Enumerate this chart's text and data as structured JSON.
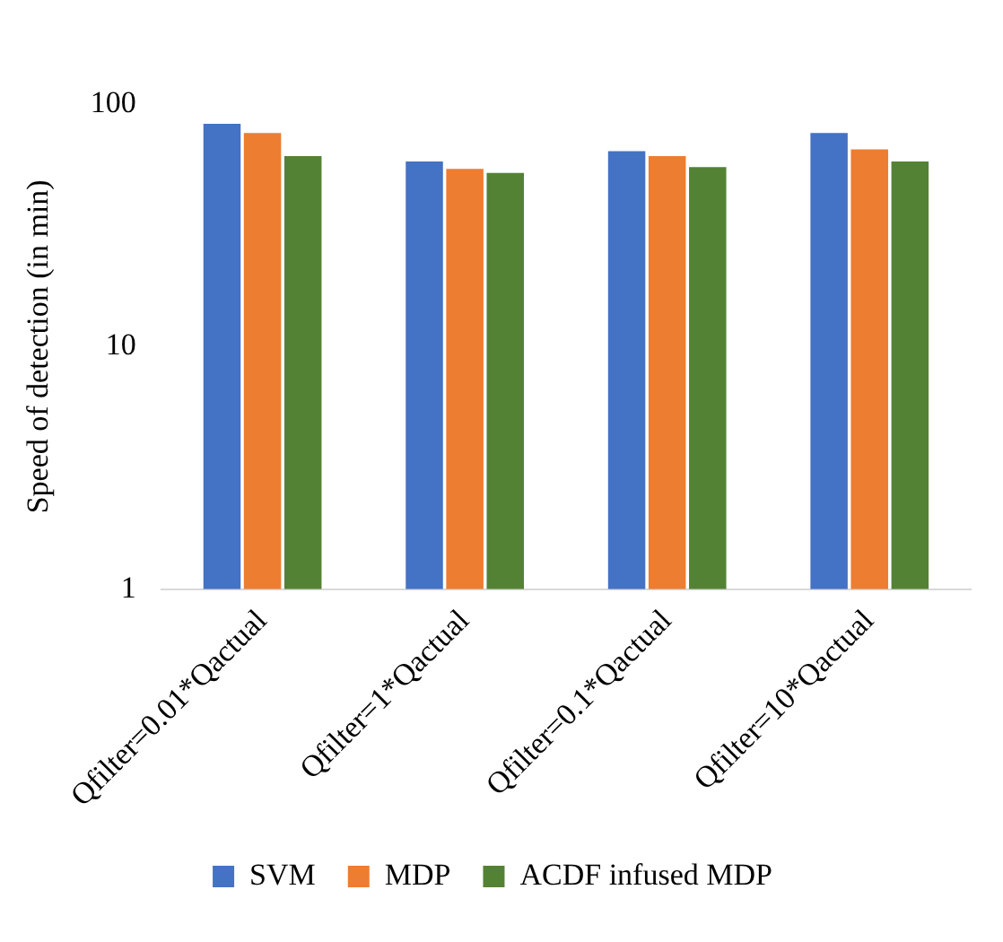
{
  "chart_data": {
    "type": "bar",
    "ylabel": "Speed of detection (in min)",
    "categories": [
      "Qfilter=0.01*Qactual",
      "Qfilter=1*Qactual",
      "Qfilter=0.1*Qactual",
      "Qfilter=10*Qactual"
    ],
    "series": [
      {
        "name": "SVM",
        "color": "#4472c4",
        "values": [
          83,
          58,
          64,
          76
        ]
      },
      {
        "name": "MDP",
        "color": "#ed7d31",
        "values": [
          76,
          54,
          61,
          65
        ]
      },
      {
        "name": "ACDF infused MDP",
        "color": "#548235",
        "values": [
          61,
          52,
          55,
          58
        ]
      }
    ],
    "ylim": [
      1,
      100
    ],
    "yticks": [
      1,
      10,
      100
    ],
    "log": true,
    "grid": false,
    "legend": "bottom"
  }
}
